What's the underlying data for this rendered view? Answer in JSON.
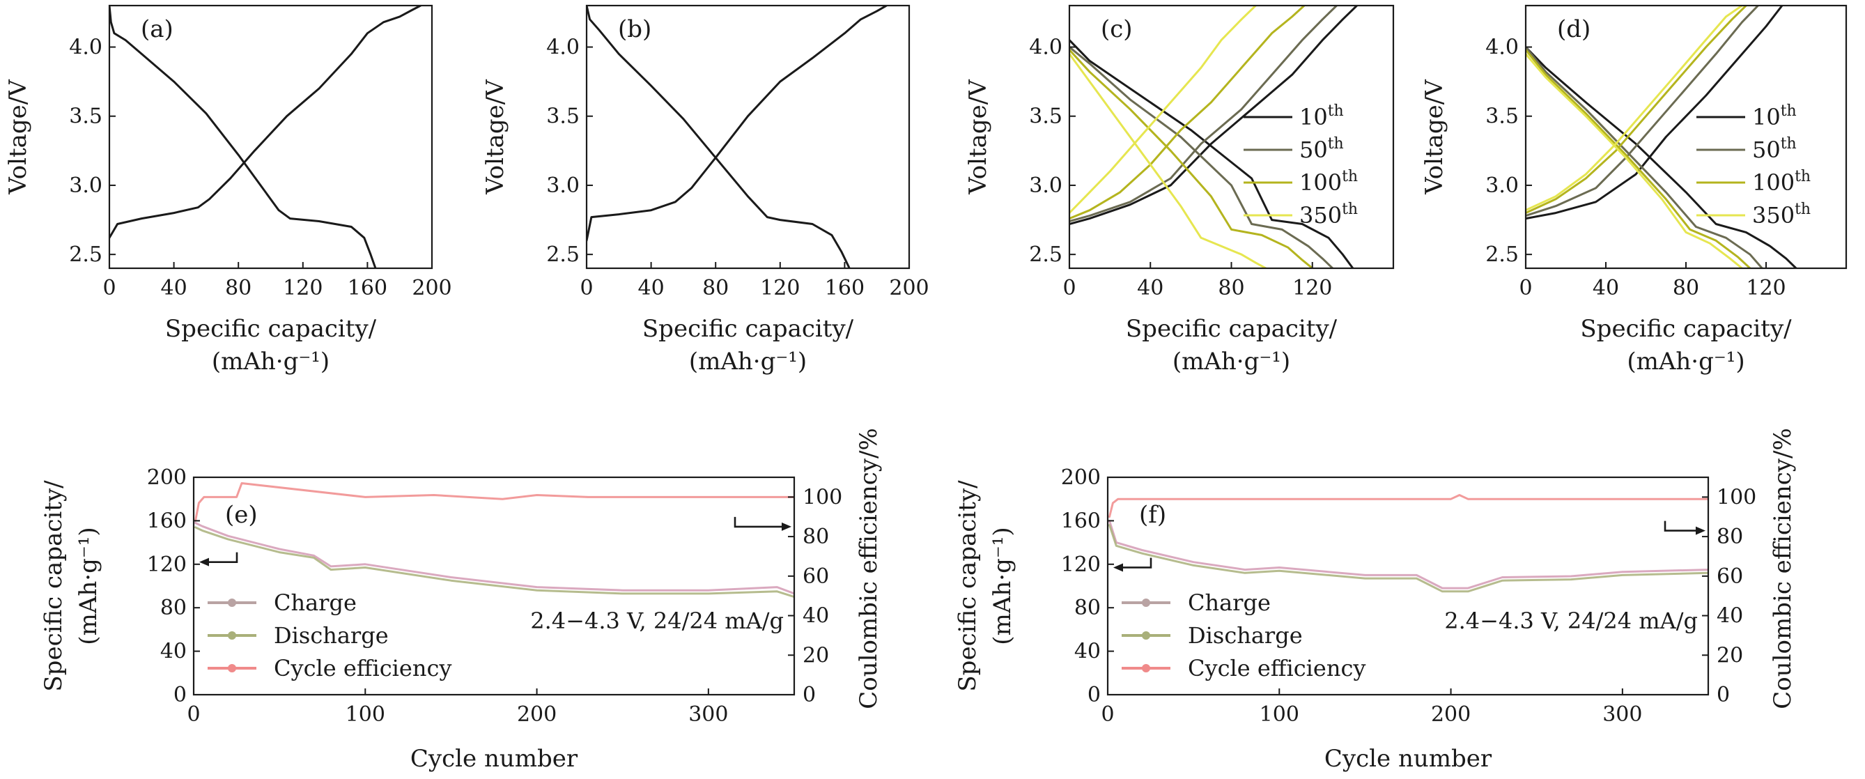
{
  "chart_data": [
    {
      "id": "a",
      "type": "line",
      "panel_label": "(a)",
      "xlabel": "Specific capacity/",
      "xlabel2": "(mAh·g⁻¹)",
      "ylabel": "Voltage/V",
      "xlim": [
        0,
        200
      ],
      "ylim": [
        2.4,
        4.3
      ],
      "xticks": [
        "0",
        "40",
        "80",
        "120",
        "160",
        "200"
      ],
      "yticks": [
        "2.5",
        "3.0",
        "3.5",
        "4.0"
      ],
      "series": [
        {
          "role": "charge",
          "color": "#1a1a1a",
          "x": [
            0,
            5,
            20,
            40,
            55,
            62,
            75,
            90,
            110,
            130,
            150,
            160,
            170,
            180,
            188,
            193
          ],
          "y": [
            2.62,
            2.72,
            2.76,
            2.8,
            2.84,
            2.9,
            3.05,
            3.25,
            3.5,
            3.7,
            3.95,
            4.1,
            4.18,
            4.22,
            4.27,
            4.3
          ]
        },
        {
          "role": "discharge",
          "color": "#1a1a1a",
          "x": [
            0,
            1,
            3,
            10,
            20,
            40,
            60,
            80,
            95,
            105,
            112,
            130,
            150,
            158,
            162,
            165
          ],
          "y": [
            4.3,
            4.18,
            4.1,
            4.05,
            3.95,
            3.75,
            3.52,
            3.22,
            2.98,
            2.82,
            2.76,
            2.74,
            2.7,
            2.62,
            2.5,
            2.4
          ]
        }
      ]
    },
    {
      "id": "b",
      "type": "line",
      "panel_label": "(b)",
      "xlabel": "Specific capacity/",
      "xlabel2": "(mAh·g⁻¹)",
      "ylabel": "Voltage/V",
      "xlim": [
        0,
        200
      ],
      "ylim": [
        2.4,
        4.3
      ],
      "xticks": [
        "0",
        "40",
        "80",
        "120",
        "160",
        "200"
      ],
      "yticks": [
        "2.5",
        "3.0",
        "3.5",
        "4.0"
      ],
      "series": [
        {
          "role": "charge",
          "color": "#1a1a1a",
          "x": [
            0,
            3,
            20,
            40,
            55,
            65,
            80,
            100,
            120,
            140,
            160,
            170,
            180,
            186
          ],
          "y": [
            2.6,
            2.77,
            2.79,
            2.82,
            2.88,
            2.98,
            3.2,
            3.5,
            3.75,
            3.92,
            4.1,
            4.2,
            4.26,
            4.3
          ]
        },
        {
          "role": "discharge",
          "color": "#1a1a1a",
          "x": [
            0,
            2,
            8,
            20,
            40,
            60,
            80,
            100,
            112,
            120,
            140,
            152,
            158,
            163
          ],
          "y": [
            4.3,
            4.2,
            4.12,
            3.95,
            3.72,
            3.48,
            3.2,
            2.92,
            2.77,
            2.75,
            2.72,
            2.64,
            2.52,
            2.4
          ]
        }
      ]
    },
    {
      "id": "c",
      "type": "line",
      "panel_label": "(c)",
      "xlabel": "Specific capacity/",
      "xlabel2": "(mAh·g⁻¹)",
      "ylabel": "Voltage/V",
      "xlim": [
        0,
        160
      ],
      "ylim": [
        2.4,
        4.3
      ],
      "xticks": [
        "0",
        "40",
        "80",
        "120"
      ],
      "yticks": [
        "2.5",
        "3.0",
        "3.5",
        "4.0"
      ],
      "legend": {
        "position": "right",
        "entries": [
          {
            "base": "10",
            "sup": "th",
            "color": "#1a1a1a"
          },
          {
            "base": "50",
            "sup": "th",
            "color": "#6b6b52"
          },
          {
            "base": "100",
            "sup": "th",
            "color": "#b4b41e"
          },
          {
            "base": "350",
            "sup": "th",
            "color": "#e6e650"
          }
        ]
      },
      "series": [
        {
          "name": "10th",
          "role": "discharge",
          "color": "#1a1a1a",
          "x": [
            0,
            10,
            30,
            60,
            90,
            100,
            115,
            128,
            135,
            140
          ],
          "y": [
            4.05,
            3.9,
            3.7,
            3.4,
            3.05,
            2.75,
            2.72,
            2.62,
            2.5,
            2.4
          ]
        },
        {
          "name": "10th",
          "role": "charge",
          "color": "#1a1a1a",
          "x": [
            0,
            10,
            30,
            50,
            70,
            90,
            110,
            125,
            135,
            142
          ],
          "y": [
            2.72,
            2.76,
            2.86,
            3.0,
            3.3,
            3.55,
            3.8,
            4.05,
            4.2,
            4.3
          ]
        },
        {
          "name": "50th",
          "role": "discharge",
          "color": "#6b6b52",
          "x": [
            0,
            10,
            30,
            55,
            80,
            90,
            105,
            118,
            125,
            130
          ],
          "y": [
            4.0,
            3.88,
            3.62,
            3.35,
            3.0,
            2.72,
            2.68,
            2.56,
            2.47,
            2.4
          ]
        },
        {
          "name": "50th",
          "role": "charge",
          "color": "#6b6b52",
          "x": [
            0,
            10,
            30,
            50,
            65,
            85,
            100,
            115,
            125,
            132
          ],
          "y": [
            2.74,
            2.78,
            2.88,
            3.05,
            3.3,
            3.55,
            3.8,
            4.05,
            4.2,
            4.3
          ]
        },
        {
          "name": "100th",
          "role": "discharge",
          "color": "#b4b41e",
          "x": [
            0,
            10,
            30,
            50,
            70,
            80,
            95,
            108,
            115,
            120
          ],
          "y": [
            3.98,
            3.82,
            3.55,
            3.25,
            2.92,
            2.68,
            2.64,
            2.55,
            2.46,
            2.4
          ]
        },
        {
          "name": "100th",
          "role": "charge",
          "color": "#b4b41e",
          "x": [
            0,
            10,
            25,
            40,
            55,
            70,
            85,
            100,
            110,
            116
          ],
          "y": [
            2.76,
            2.82,
            2.95,
            3.15,
            3.4,
            3.6,
            3.85,
            4.1,
            4.22,
            4.3
          ]
        },
        {
          "name": "350th",
          "role": "discharge",
          "color": "#e6e650",
          "x": [
            0,
            10,
            25,
            40,
            55,
            65,
            75,
            85,
            92,
            97
          ],
          "y": [
            3.95,
            3.75,
            3.45,
            3.15,
            2.85,
            2.62,
            2.56,
            2.5,
            2.44,
            2.4
          ]
        },
        {
          "name": "350th",
          "role": "charge",
          "color": "#e6e650",
          "x": [
            0,
            8,
            20,
            35,
            50,
            65,
            75,
            85,
            92
          ],
          "y": [
            2.8,
            2.92,
            3.1,
            3.35,
            3.6,
            3.85,
            4.05,
            4.2,
            4.3
          ]
        }
      ]
    },
    {
      "id": "d",
      "type": "line",
      "panel_label": "(d)",
      "xlabel": "Specific capacity/",
      "xlabel2": "(mAh·g⁻¹)",
      "ylabel": "Voltage/V",
      "xlim": [
        0,
        160
      ],
      "ylim": [
        2.4,
        4.3
      ],
      "xticks": [
        "0",
        "40",
        "80",
        "120"
      ],
      "yticks": [
        "2.5",
        "3.0",
        "3.5",
        "4.0"
      ],
      "legend": {
        "position": "right",
        "entries": [
          {
            "base": "10",
            "sup": "th",
            "color": "#1a1a1a"
          },
          {
            "base": "50",
            "sup": "th",
            "color": "#6b6b52"
          },
          {
            "base": "100",
            "sup": "th",
            "color": "#b4b41e"
          },
          {
            "base": "350",
            "sup": "th",
            "color": "#e6e650"
          }
        ]
      },
      "series": [
        {
          "name": "10th",
          "role": "discharge",
          "color": "#1a1a1a",
          "x": [
            0,
            10,
            30,
            55,
            80,
            95,
            110,
            122,
            130,
            135
          ],
          "y": [
            4.0,
            3.85,
            3.6,
            3.3,
            2.95,
            2.72,
            2.66,
            2.56,
            2.47,
            2.4
          ]
        },
        {
          "name": "10th",
          "role": "charge",
          "color": "#1a1a1a",
          "x": [
            0,
            15,
            35,
            55,
            70,
            90,
            105,
            120,
            128
          ],
          "y": [
            2.76,
            2.8,
            2.88,
            3.08,
            3.35,
            3.65,
            3.9,
            4.15,
            4.3
          ]
        },
        {
          "name": "50th",
          "role": "discharge",
          "color": "#6b6b52",
          "x": [
            0,
            10,
            30,
            50,
            70,
            85,
            100,
            112,
            118
          ],
          "y": [
            4.0,
            3.82,
            3.55,
            3.25,
            2.95,
            2.7,
            2.62,
            2.5,
            2.4
          ]
        },
        {
          "name": "50th",
          "role": "charge",
          "color": "#6b6b52",
          "x": [
            0,
            15,
            35,
            50,
            65,
            80,
            95,
            108,
            116
          ],
          "y": [
            2.78,
            2.85,
            2.98,
            3.2,
            3.45,
            3.7,
            3.95,
            4.18,
            4.3
          ]
        },
        {
          "name": "100th",
          "role": "discharge",
          "color": "#b4b41e",
          "x": [
            0,
            10,
            30,
            50,
            70,
            82,
            95,
            106,
            112
          ],
          "y": [
            3.98,
            3.8,
            3.52,
            3.22,
            2.9,
            2.68,
            2.6,
            2.48,
            2.4
          ]
        },
        {
          "name": "100th",
          "role": "charge",
          "color": "#b4b41e",
          "x": [
            0,
            15,
            30,
            45,
            60,
            75,
            90,
            103,
            110
          ],
          "y": [
            2.8,
            2.9,
            3.05,
            3.25,
            3.5,
            3.75,
            4.0,
            4.2,
            4.3
          ]
        },
        {
          "name": "350th",
          "role": "discharge",
          "color": "#e6e650",
          "x": [
            0,
            10,
            30,
            50,
            68,
            80,
            92,
            102,
            108
          ],
          "y": [
            3.95,
            3.78,
            3.5,
            3.2,
            2.9,
            2.66,
            2.58,
            2.47,
            2.4
          ]
        },
        {
          "name": "350th",
          "role": "charge",
          "color": "#e6e650",
          "x": [
            0,
            15,
            30,
            45,
            60,
            75,
            88,
            100,
            108
          ],
          "y": [
            2.82,
            2.92,
            3.08,
            3.3,
            3.55,
            3.8,
            4.02,
            4.22,
            4.3
          ]
        }
      ]
    },
    {
      "id": "e",
      "type": "line",
      "panel_label": "(e)",
      "xlabel": "Cycle number",
      "ylabel": "Specific capacity/",
      "ylabel2": "(mAh·g⁻¹)",
      "ylabel_right": "Coulombic efficiency/%",
      "xlim": [
        0,
        350
      ],
      "ylim": [
        0,
        200
      ],
      "ylim_right": [
        0,
        110
      ],
      "xticks": [
        "0",
        "100",
        "200",
        "300"
      ],
      "yticks": [
        "0",
        "40",
        "80",
        "120",
        "160",
        "200"
      ],
      "yticks_right": [
        "0",
        "20",
        "40",
        "60",
        "80",
        "100"
      ],
      "note": "2.4−4.3 V, 24/24 mA/g",
      "legend": {
        "position": "lower-left",
        "entries": [
          {
            "label": "Charge",
            "color": "#b9a3a3"
          },
          {
            "label": "Discharge",
            "color": "#a9b07a"
          },
          {
            "label": "Cycle efficiency",
            "color": "#f08a8a"
          }
        ]
      },
      "series": [
        {
          "name": "Charge",
          "axis": "left",
          "color": "#d49ab4",
          "x": [
            1,
            5,
            20,
            50,
            70,
            80,
            100,
            150,
            200,
            250,
            300,
            340,
            350
          ],
          "y": [
            158,
            155,
            146,
            134,
            128,
            118,
            120,
            108,
            99,
            96,
            96,
            99,
            93
          ]
        },
        {
          "name": "Discharge",
          "axis": "left",
          "color": "#a9b07a",
          "x": [
            1,
            5,
            20,
            50,
            70,
            80,
            100,
            150,
            200,
            250,
            300,
            340,
            350
          ],
          "y": [
            154,
            151,
            143,
            131,
            126,
            115,
            117,
            105,
            96,
            93,
            93,
            95,
            90
          ]
        },
        {
          "name": "Cycle efficiency",
          "axis": "right",
          "color": "#f08a8a",
          "x": [
            1,
            3,
            6,
            25,
            28,
            100,
            140,
            180,
            200,
            230,
            300,
            350
          ],
          "y": [
            88,
            97,
            100,
            100,
            107,
            100,
            101,
            99,
            101,
            100,
            100,
            100
          ]
        }
      ]
    },
    {
      "id": "f",
      "type": "line",
      "panel_label": "(f)",
      "xlabel": "Cycle number",
      "ylabel": "Specific capacity/",
      "ylabel2": "(mAh·g⁻¹)",
      "ylabel_right": "Coulombic efficiency/%",
      "xlim": [
        0,
        350
      ],
      "ylim": [
        0,
        200
      ],
      "ylim_right": [
        0,
        110
      ],
      "xticks": [
        "0",
        "100",
        "200",
        "300"
      ],
      "yticks": [
        "0",
        "40",
        "80",
        "120",
        "160",
        "200"
      ],
      "yticks_right": [
        "0",
        "20",
        "40",
        "60",
        "80",
        "100"
      ],
      "note": "2.4−4.3 V, 24/24 mA/g",
      "legend": {
        "position": "lower-left",
        "entries": [
          {
            "label": "Charge",
            "color": "#b9a3a3"
          },
          {
            "label": "Discharge",
            "color": "#a9b07a"
          },
          {
            "label": "Cycle efficiency",
            "color": "#f08a8a"
          }
        ]
      },
      "series": [
        {
          "name": "Charge",
          "axis": "left",
          "color": "#d49ab4",
          "x": [
            1,
            5,
            20,
            50,
            80,
            100,
            150,
            180,
            195,
            210,
            230,
            270,
            300,
            350
          ],
          "y": [
            160,
            140,
            133,
            122,
            115,
            117,
            110,
            110,
            98,
            98,
            108,
            109,
            113,
            115
          ]
        },
        {
          "name": "Discharge",
          "axis": "left",
          "color": "#a9b07a",
          "x": [
            1,
            5,
            20,
            50,
            80,
            100,
            150,
            180,
            195,
            210,
            230,
            270,
            300,
            350
          ],
          "y": [
            156,
            137,
            130,
            119,
            112,
            114,
            107,
            107,
            95,
            95,
            105,
            106,
            110,
            112
          ]
        },
        {
          "name": "Cycle efficiency",
          "axis": "right",
          "color": "#f08a8a",
          "x": [
            1,
            3,
            6,
            100,
            150,
            200,
            205,
            210,
            300,
            350
          ],
          "y": [
            90,
            97,
            99,
            99,
            99,
            99,
            101,
            99,
            99,
            99
          ]
        }
      ]
    }
  ]
}
